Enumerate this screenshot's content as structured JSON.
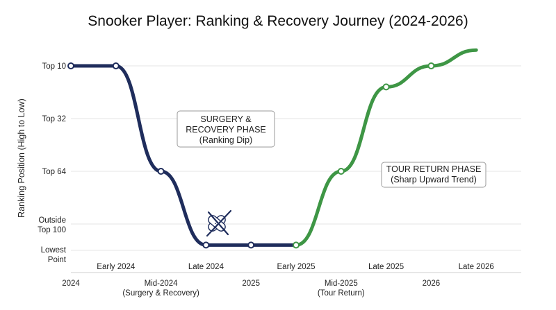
{
  "chart_data": {
    "type": "line",
    "title": "Snooker Player: Ranking & Recovery Journey (2024-2026)",
    "ylabel": "Ranking Position (High to Low)",
    "xlabel": "",
    "xlim": [
      2024.0,
      2026.5
    ],
    "x_ticks_major": [
      {
        "x": 2024.0,
        "label": "2024"
      },
      {
        "x": 2024.5,
        "label": "Mid-2024",
        "sub": "(Surgery & Recovery)"
      },
      {
        "x": 2025.0,
        "label": "2025"
      },
      {
        "x": 2025.5,
        "label": "Mid-2025",
        "sub": "(Tour Return)"
      },
      {
        "x": 2026.0,
        "label": "2026"
      }
    ],
    "x_ticks_minor": [
      {
        "x": 2024.25,
        "label": "Early 2024"
      },
      {
        "x": 2024.75,
        "label": "Late 2024"
      },
      {
        "x": 2025.25,
        "label": "Early 2025"
      },
      {
        "x": 2025.75,
        "label": "Late 2025"
      },
      {
        "x": 2026.25,
        "label": "Late 2026"
      }
    ],
    "y_ticks": [
      {
        "level": 1,
        "label": "Top 10"
      },
      {
        "level": 2,
        "label": "Top 32"
      },
      {
        "level": 3,
        "label": "Top 64"
      },
      {
        "level": 4,
        "label": "Outside Top 100"
      },
      {
        "level": 4.5,
        "label": "Lowest Point"
      }
    ],
    "y_range": [
      0.7,
      5.0
    ],
    "grid": "horizontal",
    "colors": {
      "decline": "#1f2d5c",
      "recovery": "#3e9645"
    },
    "series": [
      {
        "phase": "decline",
        "color": "#1f2d5c",
        "points": [
          {
            "x": 2024.0,
            "y": 1.0
          },
          {
            "x": 2024.25,
            "y": 1.0
          },
          {
            "x": 2024.5,
            "y": 3.0
          },
          {
            "x": 2024.75,
            "y": 4.4
          },
          {
            "x": 2025.0,
            "y": 4.4
          }
        ]
      },
      {
        "phase": "recovery",
        "color": "#3e9645",
        "points": [
          {
            "x": 2025.25,
            "y": 4.4
          },
          {
            "x": 2025.5,
            "y": 3.0
          },
          {
            "x": 2025.75,
            "y": 1.4
          },
          {
            "x": 2026.0,
            "y": 1.0
          },
          {
            "x": 2026.25,
            "y": 0.7
          }
        ]
      }
    ],
    "annotations": [
      {
        "lines": [
          "SURGERY &",
          "RECOVERY PHASE",
          "(Ranking Dip)"
        ]
      },
      {
        "lines": [
          "TOUR RETURN PHASE",
          "(Sharp Upward Trend)"
        ]
      }
    ],
    "icon": "bandage-and-crossed-cues-icon"
  }
}
